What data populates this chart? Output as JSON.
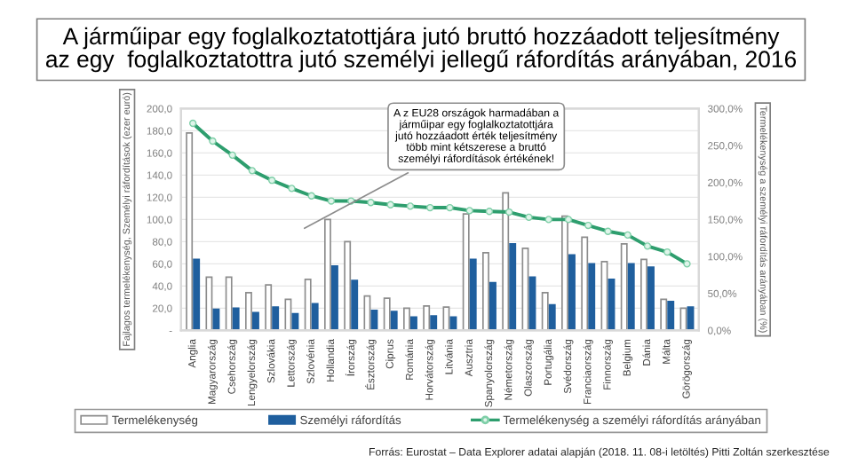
{
  "chart_data": {
    "type": "bar",
    "title": "A járműipar egy foglalkoztatottjára jutó bruttó hozzáadott teljesítmény\naz egy  foglalkoztatottra jutó személyi jellegű ráfordítás arányában, 2016",
    "ylabel": "Fajlagos termelékenység, Személyi ráfordítások (ezer euró)",
    "y2label": "Termelékenység a személyi ráfordítás arányában (%)",
    "categories": [
      "Anglia",
      "Magyarország",
      "Csehország",
      "Lengyelország",
      "Szlovákia",
      "Lettország",
      "Szlovénia",
      "Hollandia",
      "Írország",
      "Észtország",
      "Ciprus",
      "Románia",
      "Horvátország",
      "Litvánia",
      "Ausztria",
      "Spanyolország",
      "Németország",
      "Olaszország",
      "Portugália",
      "Svédország",
      "Franciaország",
      "Finnország",
      "Belgium",
      "Dánia",
      "Málta",
      "Görögország"
    ],
    "series": [
      {
        "name": "Termelékenység",
        "color": "#ffffff",
        "values": [
          178,
          48,
          48,
          34,
          41,
          28,
          46,
          100,
          80,
          31,
          29,
          20,
          22,
          21,
          105,
          70,
          124,
          74,
          34,
          103,
          84,
          62,
          78,
          64,
          28,
          20
        ]
      },
      {
        "name": "Személyi ráfordítás",
        "color": "#1f5f9e",
        "values": [
          64,
          19,
          20,
          16,
          21,
          15,
          24,
          58,
          45,
          18,
          17,
          12,
          13,
          12,
          64,
          43,
          78,
          48,
          23,
          68,
          60,
          46,
          60,
          57,
          26,
          21
        ]
      },
      {
        "name": "Termelékenység a személyi ráfordítás arányában",
        "type": "line",
        "axis": "y2",
        "color": "#2e9e6e",
        "marker": "circle",
        "values": [
          280,
          256,
          237,
          216,
          203,
          192,
          182,
          175,
          175,
          173,
          170,
          168,
          166,
          166,
          162,
          161,
          160,
          153,
          150,
          150,
          142,
          134,
          129,
          114,
          106,
          90
        ]
      }
    ],
    "ylim": [
      0,
      200
    ],
    "yticks": [
      {
        "value": 0,
        "label": "-"
      },
      {
        "value": 20,
        "label": "20,0"
      },
      {
        "value": 40,
        "label": "40,0"
      },
      {
        "value": 60,
        "label": "60,0"
      },
      {
        "value": 80,
        "label": "80,0"
      },
      {
        "value": 100,
        "label": "100,0"
      },
      {
        "value": 120,
        "label": "120,0"
      },
      {
        "value": 140,
        "label": "140,0"
      },
      {
        "value": 160,
        "label": "160,0"
      },
      {
        "value": 180,
        "label": "180,0"
      },
      {
        "value": 200,
        "label": "200,0"
      }
    ],
    "y2lim": [
      0,
      300
    ],
    "y2ticks": [
      {
        "value": 0,
        "label": "0,0%"
      },
      {
        "value": 50,
        "label": "50,0%"
      },
      {
        "value": 100,
        "label": "100,0%"
      },
      {
        "value": 150,
        "label": "150,0%"
      },
      {
        "value": 200,
        "label": "200,0%"
      },
      {
        "value": 250,
        "label": "250,0%"
      },
      {
        "value": 300,
        "label": "300,0%"
      }
    ],
    "grid": "y",
    "legend": "bottom",
    "annotations": [
      "A z EU28 országok harmadában a\njárműipar egy foglalkoztatottjára\njutó hozzáadott érték teljesítmény\ntöbb mint kétszerese a bruttó\nszemélyi ráfordítások értékének!",
      "Forrás: Eurostat – Data Explorer adatai alapján (2018. 11. 08-i letöltés) Pitti Zoltán szerkesztése"
    ]
  }
}
